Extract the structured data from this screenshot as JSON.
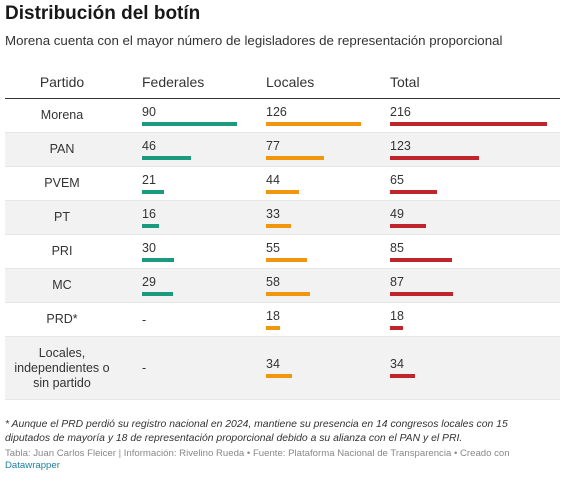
{
  "header": {
    "title": "Distribución del botín",
    "subtitle": "Morena cuenta con el mayor número de legisladores de representación proporcional"
  },
  "table_header": {
    "party": "Partido",
    "federales": "Federales",
    "locales": "Locales",
    "total": "Total"
  },
  "colors": {
    "federales": "#1a9b7e",
    "locales": "#f2960d",
    "total": "#c0252b"
  },
  "chart_data": {
    "type": "table",
    "columns": [
      "Partido",
      "Federales",
      "Locales",
      "Total"
    ],
    "rows": [
      {
        "party": "Morena",
        "federales": 90,
        "locales": 126,
        "total": 216
      },
      {
        "party": "PAN",
        "federales": 46,
        "locales": 77,
        "total": 123
      },
      {
        "party": "PVEM",
        "federales": 21,
        "locales": 44,
        "total": 65
      },
      {
        "party": "PT",
        "federales": 16,
        "locales": 33,
        "total": 49
      },
      {
        "party": "PRI",
        "federales": 30,
        "locales": 55,
        "total": 85
      },
      {
        "party": "MC",
        "federales": 29,
        "locales": 58,
        "total": 87
      },
      {
        "party": "PRD*",
        "federales": null,
        "locales": 18,
        "total": 18
      },
      {
        "party": "Locales, independientes o sin partido",
        "federales": null,
        "locales": 34,
        "total": 34
      }
    ],
    "missing_value_text": "-"
  },
  "footer": {
    "note": "* Aunque el PRD perdió su registro nacional en 2024, mantiene su presencia en 14 congresos locales con 15 diputados de mayoría y 18 de representación proporcional debido a su alianza con el PAN y el PRI.",
    "source": "Tabla: Juan Carlos Fleicer | Información: Rivelino Rueda • Fuente: Plataforma Nacional de Transparencia • Creado con ",
    "credit": "Datawrapper"
  }
}
